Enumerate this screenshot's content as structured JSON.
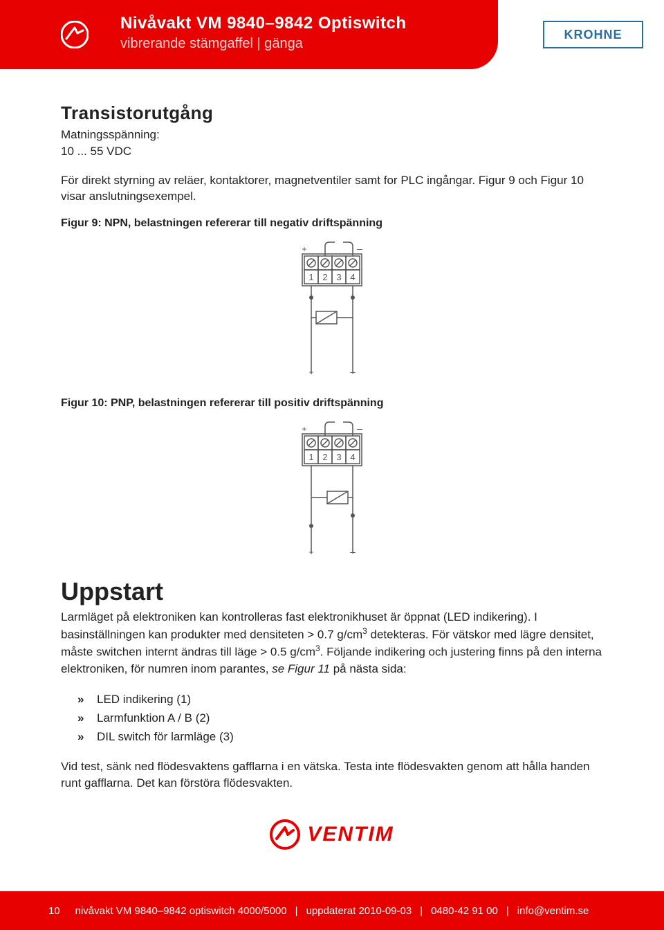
{
  "header": {
    "title": "Nivåvakt VM 9840–9842 Optiswitch",
    "subtitle": "vibrerande stämgaffel  |  gänga",
    "brand": "KROHNE"
  },
  "colors": {
    "accent": "#e60000",
    "brand_border": "#2a6e9e",
    "text": "#222222",
    "white": "#ffffff",
    "header_sub": "#ffd2d2"
  },
  "section1": {
    "heading": "Transistorutgång",
    "supply_label": "Matningsspänning:",
    "supply_value": "10 ... 55 VDC",
    "desc": "För direkt styrning av reläer, kontaktorer, magnetventiler samt for PLC ingångar. Figur 9 och Figur 10 visar anslutningsexempel."
  },
  "fig9": {
    "caption": "Figur 9: NPN, belastningen refererar till negativ driftspänning",
    "terminals": [
      "1",
      "2",
      "3",
      "4"
    ],
    "top_plus": "+",
    "top_minus": "–",
    "bottom_plus": "+",
    "bottom_minus": "–",
    "stroke": "#555555",
    "relay_on_left": true
  },
  "fig10": {
    "caption": "Figur 10: PNP, belastningen refererar till positiv driftspänning",
    "terminals": [
      "1",
      "2",
      "3",
      "4"
    ],
    "top_plus": "+",
    "top_minus": "–",
    "bottom_plus": "+",
    "bottom_minus": "–",
    "stroke": "#555555",
    "relay_on_left": false
  },
  "section2": {
    "heading": "Uppstart",
    "para1a": "Larmläget på elektroniken kan kontrolleras fast elektronikhuset är öppnat (LED indikering). I basinställningen kan produkter med densiteten > 0.7 g/cm",
    "para1b": " detekteras. För vätskor med lägre densitet, måste switchen internt ändras till läge > 0.5 g/cm",
    "para1c": ". Följande indikering och justering finns på den interna elektroniken, för numren inom parantes, ",
    "para1_italic": "se Figur 11",
    "para1d": " på nästa sida:",
    "sup": "3",
    "bullets": [
      "LED indikering (1)",
      "Larmfunktion A / B (2)",
      "DIL switch för larmläge (3)"
    ],
    "para2": "Vid test, sänk ned flödesvaktens gafflarna i en vätska. Testa inte flödesvakten genom att hålla handen runt gafflarna. Det kan förstöra flödesvakten."
  },
  "ventim_logo_text": "VENTIM",
  "footer": {
    "page": "10",
    "doc": "nivåvakt VM 9840–9842 optiswitch 4000/5000",
    "updated": "uppdaterat 2010-09-03",
    "phone": "0480-42 91 00",
    "email": "info@ventim.se",
    "sep": "|"
  }
}
